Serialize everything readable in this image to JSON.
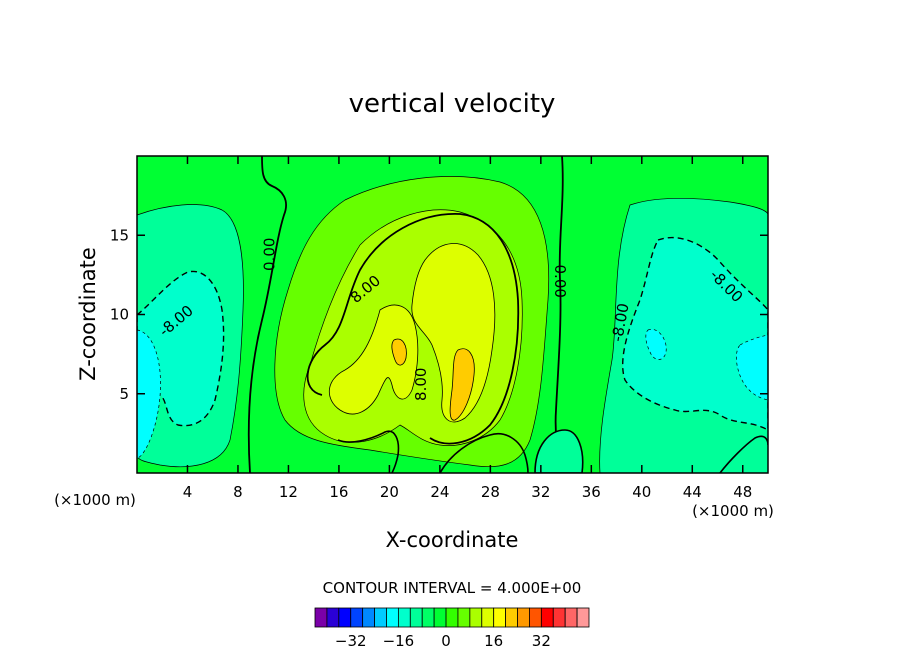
{
  "chart_data": {
    "type": "heatmap",
    "title": "vertical velocity",
    "xlabel": "X-coordinate",
    "ylabel": "Z-coordinate",
    "x_unit": "(×1000 m)",
    "z_unit": "(×1000 m)",
    "xlim": [
      0,
      50
    ],
    "ylim": [
      0,
      20
    ],
    "x_ticks": [
      4,
      8,
      12,
      16,
      20,
      24,
      28,
      32,
      36,
      40,
      44,
      48
    ],
    "y_ticks": [
      5,
      10,
      15
    ],
    "contour_interval_text": "CONTOUR INTERVAL = 4.000E+00",
    "contour_labels": [
      {
        "text": "0.00",
        "x": 10.5,
        "z": 13.8,
        "rotate": -90
      },
      {
        "text": "8.00",
        "x": 18.1,
        "z": 11.6,
        "rotate": -40
      },
      {
        "text": "8.00",
        "x": 22.5,
        "z": 5.6,
        "rotate": -90
      },
      {
        "text": "0.00",
        "x": 33.5,
        "z": 12.1,
        "rotate": 90
      },
      {
        "text": "-8.00",
        "x": 3.1,
        "z": 9.6,
        "rotate": -40
      },
      {
        "text": "-8.00",
        "x": 38.3,
        "z": 9.5,
        "rotate": -80
      },
      {
        "text": "-8.00",
        "x": 46.7,
        "z": 11.8,
        "rotate": 45
      }
    ],
    "colorbar": {
      "colors": [
        "#7a00a8",
        "#2a00d6",
        "#0000ff",
        "#0044ff",
        "#0088ff",
        "#00ccff",
        "#00ffff",
        "#00ffcc",
        "#00ff99",
        "#00ff66",
        "#00ff33",
        "#33ff00",
        "#66ff00",
        "#aaff00",
        "#ddff00",
        "#ffff00",
        "#ffcc00",
        "#ff9900",
        "#ff5500",
        "#ff0000",
        "#ff3333",
        "#ff6666",
        "#ff9999"
      ],
      "tick_labels": [
        "-32",
        "-16",
        "0",
        "16",
        "32"
      ]
    },
    "levels": [
      {
        "value": -12,
        "color": "#00ffff"
      },
      {
        "value": -8,
        "color": "#00ffcc"
      },
      {
        "value": -4,
        "color": "#00ff99"
      },
      {
        "value": 0,
        "color": "#33ff00"
      },
      {
        "value": 4,
        "color": "#66ff00"
      },
      {
        "value": 8,
        "color": "#aaff00"
      },
      {
        "value": 12,
        "color": "#ddff00"
      },
      {
        "value": 16,
        "color": "#ffcc00"
      }
    ],
    "background_color": "#00ff33"
  }
}
